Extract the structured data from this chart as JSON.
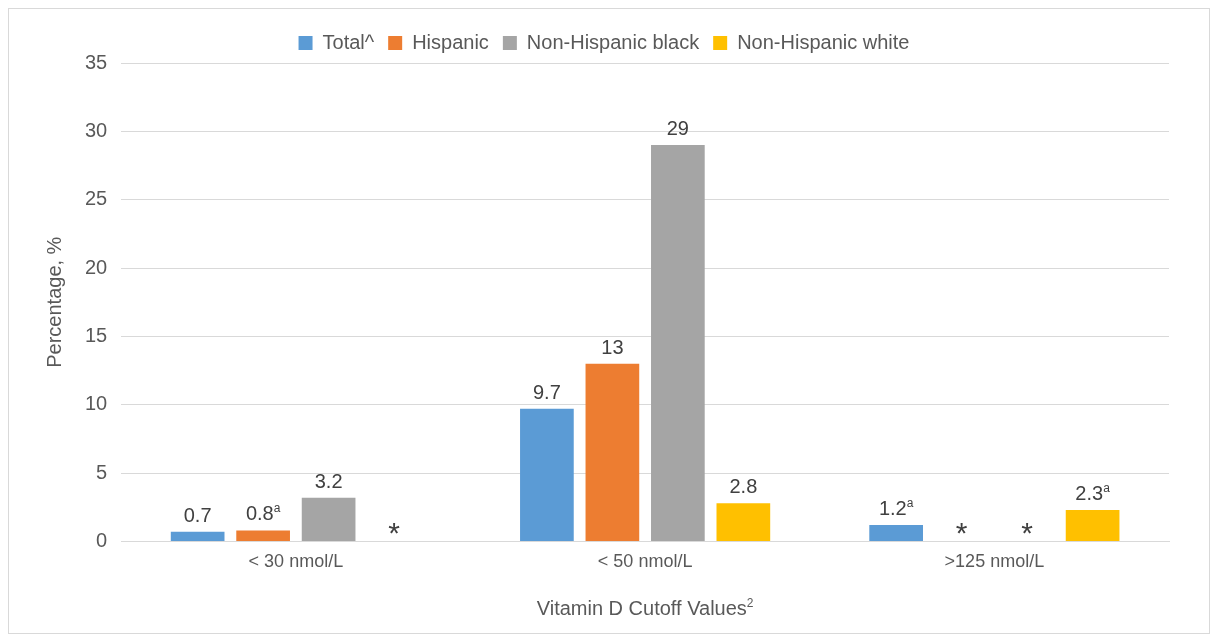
{
  "chart_data": {
    "type": "bar",
    "xlabel": "Vitamin D Cutoff Values$^{2}$",
    "ylabel": "Percentage, %",
    "categories": [
      "< 30 nmol/L",
      "< 50 nmol/L",
      ">125 nmol/L"
    ],
    "series": [
      {
        "name": "Total^",
        "color": "#5b9bd5",
        "values": [
          0.7,
          9.7,
          1.2
        ],
        "value_labels": [
          "0.7",
          "9.7",
          "1.2$^{a}$"
        ]
      },
      {
        "name": "Hispanic",
        "color": "#ed7d31",
        "values": [
          0.8,
          13,
          null
        ],
        "value_labels": [
          "0.8$^{a}$",
          "13",
          "*"
        ]
      },
      {
        "name": "Non-Hispanic black",
        "color": "#a5a5a5",
        "values": [
          3.2,
          29,
          null
        ],
        "value_labels": [
          "3.2",
          "29",
          "*"
        ]
      },
      {
        "name": "Non-Hispanic white",
        "color": "#ffc000",
        "values": [
          null,
          2.8,
          2.3
        ],
        "value_labels": [
          "*",
          "2.8",
          "2.3$^{a}$"
        ]
      }
    ],
    "ylim": [
      0,
      35
    ],
    "yticks": [
      0,
      5,
      10,
      15,
      20,
      25,
      30,
      35
    ],
    "grid": "y",
    "legend": "top"
  }
}
